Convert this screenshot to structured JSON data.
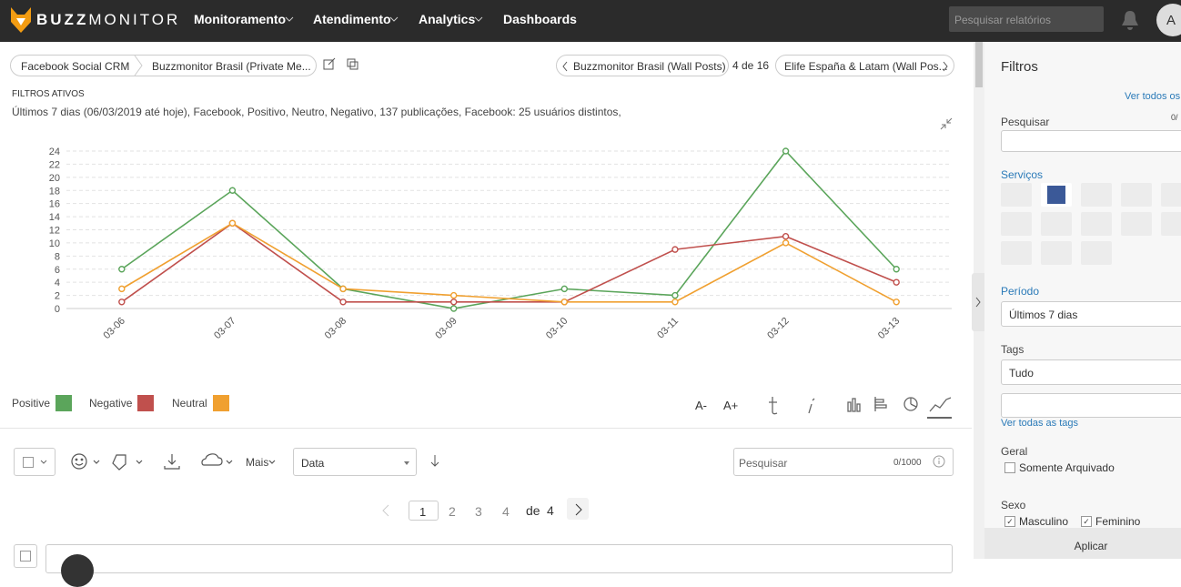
{
  "nav": {
    "brand": [
      "BUZZ",
      "MONITOR"
    ],
    "menu": [
      "Monitoramento",
      "Atendimento",
      "Analytics",
      "Dashboards"
    ],
    "search_placeholder": "Pesquisar relatórios",
    "avatar": "A"
  },
  "breadcrumb": [
    "Facebook Social CRM",
    "Buzzmonitor Brasil (Private Me..."
  ],
  "pager": {
    "prev": "Buzzmonitor Brasil (Wall Posts)",
    "position": "4 de 16",
    "next": "Elife España & Latam (Wall Pos..."
  },
  "filters": {
    "heading": "FILTROS ATIVOS",
    "summary": "Últimos 7 dias (06/03/2019 até hoje), Facebook, Positivo, Neutro, Negativo, 137 publicações, Facebook: 25 usuários distintos,"
  },
  "chart_data": {
    "type": "line",
    "categories": [
      "03-06",
      "03-07",
      "03-08",
      "03-09",
      "03-10",
      "03-11",
      "03-12",
      "03-13"
    ],
    "series": [
      {
        "name": "Positive",
        "color": "#5ba55b",
        "values": [
          6,
          18,
          3,
          0,
          3,
          2,
          24,
          6
        ]
      },
      {
        "name": "Negative",
        "color": "#c0504d",
        "values": [
          1,
          13,
          1,
          1,
          1,
          9,
          11,
          4
        ]
      },
      {
        "name": "Neutral",
        "color": "#f0a030",
        "values": [
          3,
          13,
          3,
          2,
          1,
          1,
          10,
          1
        ]
      }
    ],
    "ylim": [
      0,
      24
    ],
    "yticks": [
      0,
      2,
      4,
      6,
      8,
      10,
      12,
      14,
      16,
      18,
      20,
      22,
      24
    ],
    "grid": true
  },
  "chart_tools": [
    "A-",
    "A+"
  ],
  "toolbar": {
    "more": "Mais",
    "sort": "Data",
    "search_placeholder": "Pesquisar",
    "counter": "0/1000"
  },
  "pagination": {
    "pages": [
      "1",
      "2",
      "3",
      "4"
    ],
    "of": "de",
    "total": "4"
  },
  "sidebar": {
    "title": "Filtros",
    "see_all": "Ver todos os",
    "search_label": "Pesquisar",
    "search_counter": "0/",
    "services": "Serviços",
    "period_label": "Período",
    "period_value": "Últimos 7 dias",
    "tags_label": "Tags",
    "tags_value": "Tudo",
    "see_all_tags": "Ver todas as tags",
    "general": "Geral",
    "archived": "Somente Arquivado",
    "sex": "Sexo",
    "male": "Masculino",
    "female": "Feminino",
    "apply": "Aplicar"
  }
}
